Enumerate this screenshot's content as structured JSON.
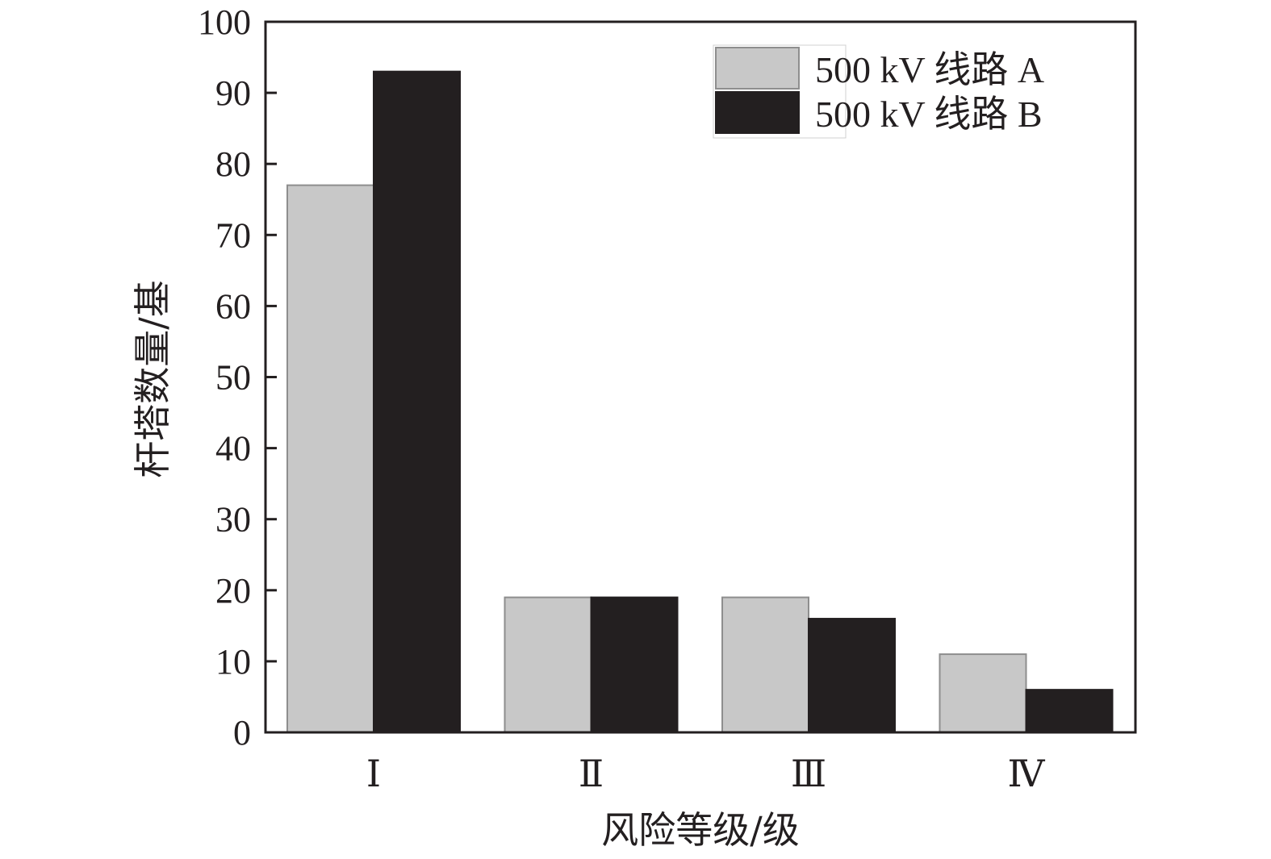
{
  "chart_data": {
    "type": "bar",
    "title": "",
    "xlabel": "风险等级/级",
    "ylabel": "杆塔数量/基",
    "ylim": [
      0,
      100
    ],
    "yticks": [
      0,
      10,
      20,
      30,
      40,
      50,
      60,
      70,
      80,
      90,
      100
    ],
    "categories": [
      "Ⅰ",
      "Ⅱ",
      "Ⅲ",
      "Ⅳ"
    ],
    "series": [
      {
        "name": "500 kV 线路 A",
        "color": "#c8c8c8",
        "values": [
          77,
          19,
          19,
          11
        ]
      },
      {
        "name": "500 kV 线路 B",
        "color": "#231f20",
        "values": [
          93,
          19,
          16,
          6
        ]
      }
    ],
    "grid": false,
    "legend_position": "top-right"
  }
}
